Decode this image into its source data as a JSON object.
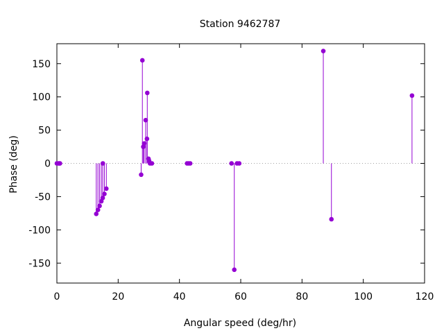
{
  "chart_data": {
    "type": "scatter",
    "style": "impulses-with-points",
    "title": "Station 9462787",
    "xlabel": "Angular speed (deg/hr)",
    "ylabel": "Phase (deg)",
    "xlim": [
      0,
      120
    ],
    "ylim": [
      -180,
      180
    ],
    "xticks": [
      0,
      20,
      40,
      60,
      80,
      100,
      120
    ],
    "yticks": [
      -150,
      -100,
      -50,
      0,
      50,
      100,
      150
    ],
    "grid": false,
    "zero_line": true,
    "color": "#9400d3",
    "points": [
      {
        "x": 0.0,
        "y": 0
      },
      {
        "x": 0.5,
        "y": 0
      },
      {
        "x": 0.8,
        "y": 0
      },
      {
        "x": 1.0,
        "y": 0
      },
      {
        "x": 12.85,
        "y": -76
      },
      {
        "x": 13.4,
        "y": -70
      },
      {
        "x": 13.94,
        "y": -64
      },
      {
        "x": 14.5,
        "y": -57
      },
      {
        "x": 14.96,
        "y": -52
      },
      {
        "x": 15.0,
        "y": 0
      },
      {
        "x": 15.5,
        "y": -46
      },
      {
        "x": 16.14,
        "y": -38
      },
      {
        "x": 27.5,
        "y": -17
      },
      {
        "x": 27.9,
        "y": 155
      },
      {
        "x": 28.2,
        "y": 25
      },
      {
        "x": 28.5,
        "y": 30
      },
      {
        "x": 28.98,
        "y": 65
      },
      {
        "x": 29.4,
        "y": 37
      },
      {
        "x": 29.5,
        "y": 106
      },
      {
        "x": 29.9,
        "y": 7
      },
      {
        "x": 30.08,
        "y": 4
      },
      {
        "x": 30.4,
        "y": 0
      },
      {
        "x": 31.0,
        "y": 0
      },
      {
        "x": 42.5,
        "y": 0
      },
      {
        "x": 43.0,
        "y": 0
      },
      {
        "x": 43.5,
        "y": 0
      },
      {
        "x": 57.0,
        "y": 0
      },
      {
        "x": 57.9,
        "y": -160
      },
      {
        "x": 58.8,
        "y": 0
      },
      {
        "x": 59.5,
        "y": 0
      },
      {
        "x": 86.95,
        "y": 169
      },
      {
        "x": 89.6,
        "y": -84
      },
      {
        "x": 115.9,
        "y": 102
      }
    ]
  }
}
